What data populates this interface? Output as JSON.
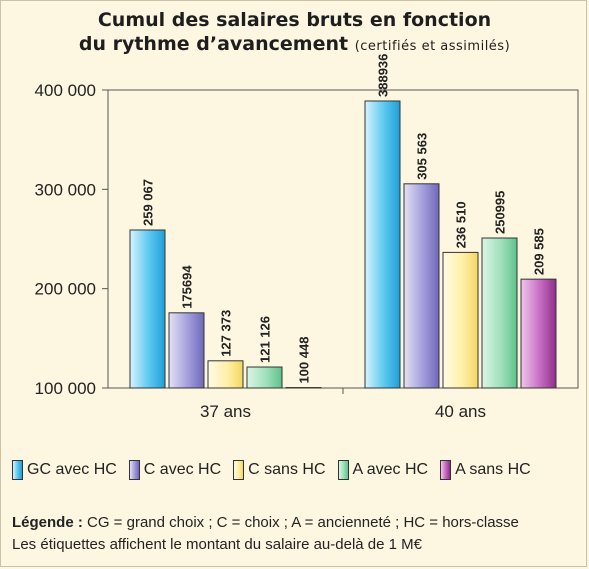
{
  "title_line1": "Cumul des salaires bruts en fonction",
  "title_line2": "du rythme d’avancement",
  "title_sub": "(certifiés et assimilés)",
  "legend_note_label": "Légende :",
  "legend_note_text": "CG = grand choix ; C =  choix ; A = ancienneté ; HC = hors-classe",
  "labels_note": "Les étiquettes affichent le montant du salaire au-delà de 1 M€",
  "chart_data": {
    "type": "bar",
    "title": "Cumul des salaires bruts en fonction du rythme d’avancement (certifiés et assimilés)",
    "categories": [
      "37 ans",
      "40 ans"
    ],
    "y_ticks": [
      "100 000",
      "200 000",
      "300 000",
      "400 000"
    ],
    "ylim": [
      100000,
      400000
    ],
    "grid": false,
    "legend_position": "bottom",
    "series": [
      {
        "name": "GC avec HC",
        "color": "#2fb6ec",
        "values": [
          259067,
          388936
        ],
        "labels": [
          "259 067",
          "388936"
        ]
      },
      {
        "name": "C avec HC",
        "color": "#8f88cf",
        "values": [
          175694,
          305563
        ],
        "labels": [
          "175694",
          "305 563"
        ]
      },
      {
        "name": "C sans HC",
        "color": "#fde88a",
        "values": [
          127373,
          236510
        ],
        "labels": [
          "127 373",
          "236 510"
        ]
      },
      {
        "name": "A avec HC",
        "color": "#7fd6a6",
        "values": [
          121126,
          250995
        ],
        "labels": [
          "121 126",
          "250995"
        ]
      },
      {
        "name": "A sans HC",
        "color": "#b54fb0",
        "values": [
          100448,
          209585
        ],
        "labels": [
          "100 448",
          "209 585"
        ]
      }
    ]
  }
}
